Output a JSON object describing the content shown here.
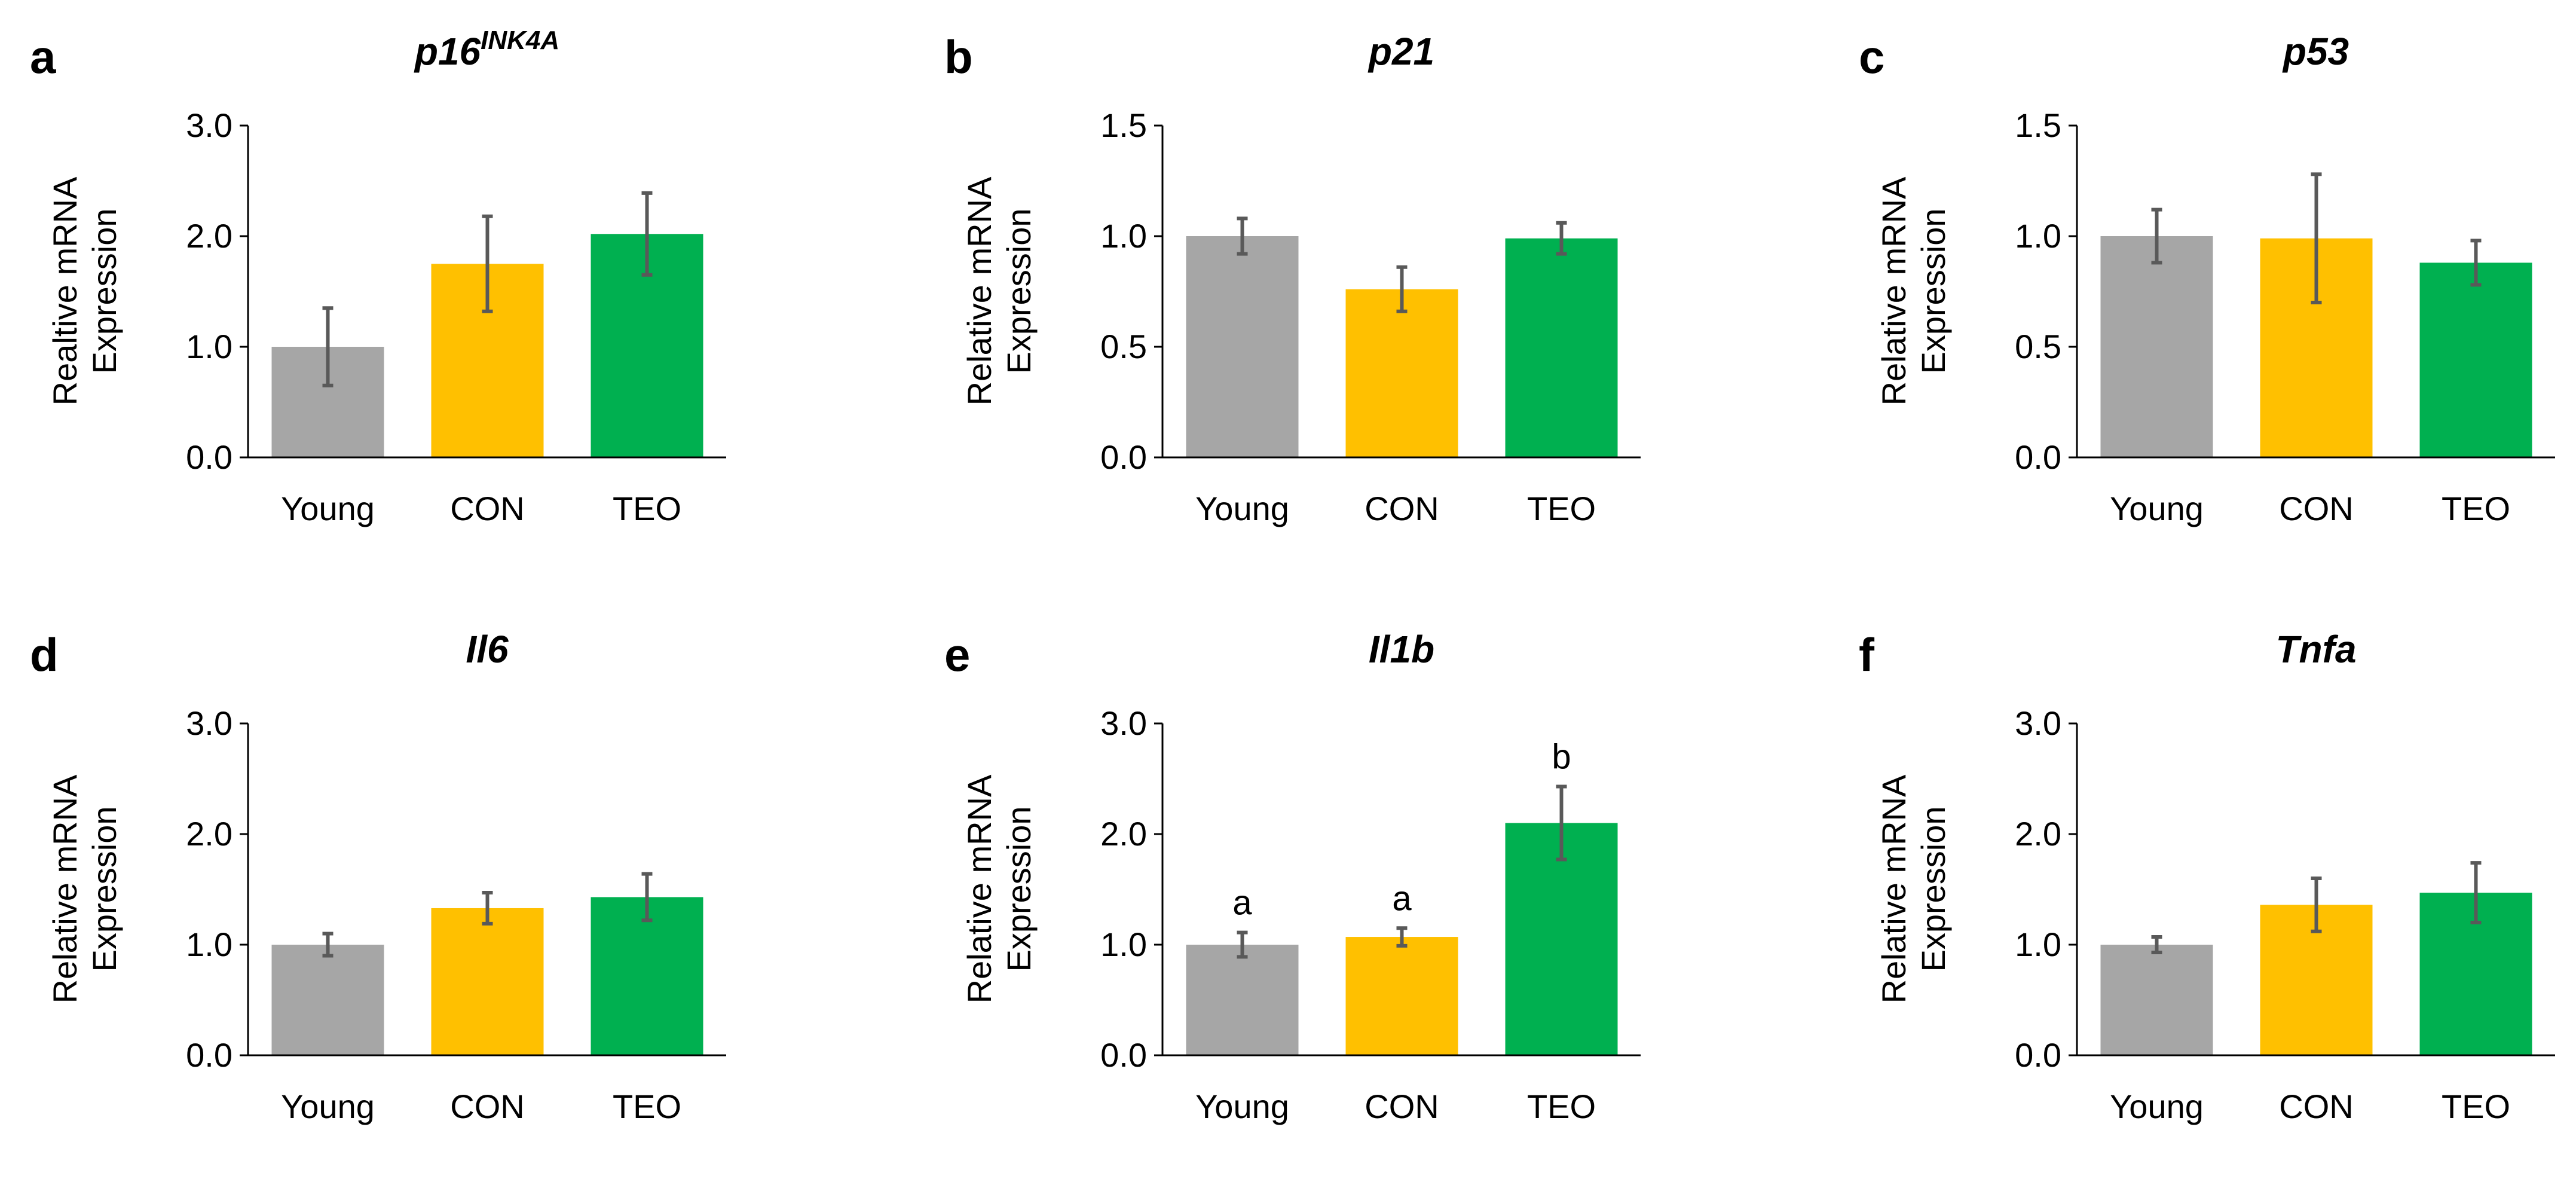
{
  "colors": {
    "Young": "#A6A6A6",
    "CON": "#FFC000",
    "TEO": "#00B050",
    "error": "#595959"
  },
  "chart_data": [
    {
      "id": "a",
      "panel": "a",
      "type": "bar",
      "title": "p16",
      "title_sup": "INK4A",
      "ylabel_lines": [
        "Realtive mRNA",
        "Expression"
      ],
      "categories": [
        "Young",
        "CON",
        "TEO"
      ],
      "values": [
        1.0,
        1.75,
        2.02
      ],
      "errors": [
        0.35,
        0.43,
        0.37
      ],
      "ylim": [
        0,
        3.0
      ],
      "yticks": [
        "0.0",
        "1.0",
        "2.0",
        "3.0"
      ],
      "significance": []
    },
    {
      "id": "b",
      "panel": "b",
      "type": "bar",
      "title": "p21",
      "ylabel_lines": [
        "Relative mRNA",
        "Expression"
      ],
      "categories": [
        "Young",
        "CON",
        "TEO"
      ],
      "values": [
        1.0,
        0.76,
        0.99
      ],
      "errors": [
        0.08,
        0.1,
        0.07
      ],
      "ylim": [
        0,
        1.5
      ],
      "yticks": [
        "0.0",
        "0.5",
        "1.0",
        "1.5"
      ],
      "significance": []
    },
    {
      "id": "c",
      "panel": "c",
      "type": "bar",
      "title": "p53",
      "ylabel_lines": [
        "Relative mRNA",
        "Expression"
      ],
      "categories": [
        "Young",
        "CON",
        "TEO"
      ],
      "values": [
        1.0,
        0.99,
        0.88
      ],
      "errors": [
        0.12,
        0.29,
        0.1
      ],
      "ylim": [
        0,
        1.5
      ],
      "yticks": [
        "0.0",
        "0.5",
        "1.0",
        "1.5"
      ],
      "significance": []
    },
    {
      "id": "d",
      "panel": "d",
      "type": "bar",
      "title": "Il6",
      "ylabel_lines": [
        "Relative mRNA",
        "Expression"
      ],
      "categories": [
        "Young",
        "CON",
        "TEO"
      ],
      "values": [
        1.0,
        1.33,
        1.43
      ],
      "errors": [
        0.1,
        0.14,
        0.21
      ],
      "ylim": [
        0,
        3.0
      ],
      "yticks": [
        "0.0",
        "1.0",
        "2.0",
        "3.0"
      ],
      "significance": []
    },
    {
      "id": "e",
      "panel": "e",
      "type": "bar",
      "title": "Il1b",
      "ylabel_lines": [
        "Relative mRNA",
        "Expression"
      ],
      "categories": [
        "Young",
        "CON",
        "TEO"
      ],
      "values": [
        1.0,
        1.07,
        2.1
      ],
      "errors": [
        0.11,
        0.08,
        0.33
      ],
      "ylim": [
        0,
        3.0
      ],
      "yticks": [
        "0.0",
        "1.0",
        "2.0",
        "3.0"
      ],
      "significance": [
        "a",
        "a",
        "b"
      ]
    },
    {
      "id": "f",
      "panel": "f",
      "type": "bar",
      "title": "Tnfa",
      "ylabel_lines": [
        "Relative mRNA",
        "Expression"
      ],
      "categories": [
        "Young",
        "CON",
        "TEO"
      ],
      "values": [
        1.0,
        1.36,
        1.47
      ],
      "errors": [
        0.07,
        0.24,
        0.27
      ],
      "ylim": [
        0,
        3.0
      ],
      "yticks": [
        "0.0",
        "1.0",
        "2.0",
        "3.0"
      ],
      "significance": []
    }
  ]
}
